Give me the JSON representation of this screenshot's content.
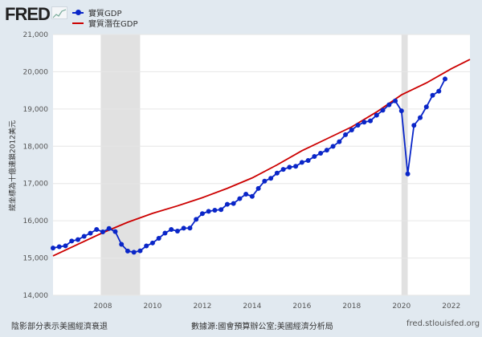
{
  "header": {
    "logo": "FRED",
    "logo_icon": "line-graph-icon"
  },
  "footer": {
    "recession_note": "陰影部分表示美國經濟衰退",
    "source": "數據源:國會預算辦公室;美國經濟分析局",
    "site": "fred.stlouisfed.org"
  },
  "chart_data": {
    "type": "line",
    "title": "",
    "xlabel": "",
    "ylabel": "縱坐標為十億連鎖2012美元",
    "xlim": [
      2006,
      2022.75
    ],
    "ylim": [
      14000,
      21000
    ],
    "y_ticks": [
      14000,
      15000,
      16000,
      17000,
      18000,
      19000,
      20000,
      21000
    ],
    "y_tick_labels": [
      "14,000",
      "15,000",
      "16,000",
      "17,000",
      "18,000",
      "19,000",
      "20,000",
      "21,000"
    ],
    "x_ticks": [
      2008,
      2010,
      2012,
      2014,
      2016,
      2018,
      2020,
      2022
    ],
    "x_tick_labels": [
      "2008",
      "2010",
      "2012",
      "2014",
      "2016",
      "2018",
      "2020",
      "2022"
    ],
    "grid": true,
    "legend_position": "top-left",
    "recessions": [
      [
        2007.917,
        2009.5
      ],
      [
        2020.0,
        2020.25
      ]
    ],
    "series": [
      {
        "name": "實質GDP",
        "color": "#0a26c8",
        "markers": true,
        "x_start": 2006.0,
        "x_step": 0.25,
        "values": [
          15267,
          15302,
          15327,
          15456,
          15493,
          15583,
          15667,
          15767,
          15702,
          15793,
          15709,
          15367,
          15188,
          15156,
          15194,
          15324,
          15404,
          15530,
          15669,
          15765,
          15722,
          15801,
          15803,
          16038,
          16191,
          16254,
          16283,
          16300,
          16442,
          16464,
          16594,
          16713,
          16654,
          16868,
          17065,
          17140,
          17279,
          17380,
          17437,
          17462,
          17566,
          17619,
          17725,
          17812,
          17896,
          17997,
          18123,
          18310,
          18437,
          18566,
          18646,
          18683,
          18834,
          18966,
          19112,
          19217,
          18952,
          17258,
          18561,
          18768,
          19056,
          19368,
          19479,
          19806
        ]
      },
      {
        "name": "實質潛在GDP",
        "color": "#cc0000",
        "markers": false,
        "x": [
          2006,
          2007,
          2008,
          2009,
          2010,
          2011,
          2012,
          2013,
          2014,
          2015,
          2016,
          2017,
          2018,
          2019,
          2020,
          2021,
          2022,
          2022.75
        ],
        "values": [
          15056,
          15370,
          15680,
          15960,
          16200,
          16400,
          16620,
          16870,
          17150,
          17500,
          17880,
          18200,
          18520,
          18920,
          19380,
          19700,
          20080,
          20330
        ]
      }
    ]
  }
}
